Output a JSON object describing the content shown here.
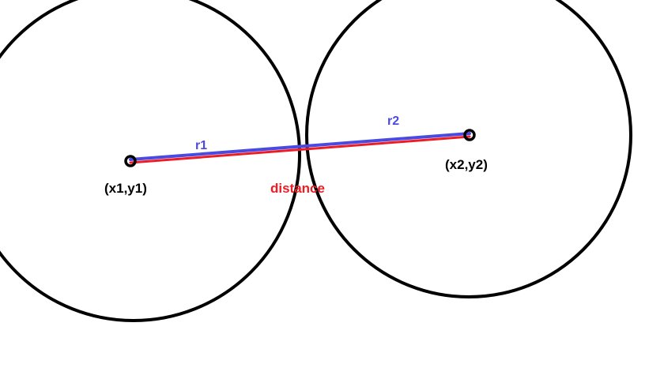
{
  "diagram": {
    "point1_label": "(x1,y1)",
    "point2_label": "(x2,y2)",
    "radius1_label": "r1",
    "radius2_label": "r2",
    "distance_label": "distance"
  },
  "colors": {
    "background": "#ffffff",
    "circle_stroke": "#000000",
    "radius_line": "#4a4ae0",
    "distance_line": "#ee1c24",
    "point_label": "#000000",
    "radius_label": "#4a4ae0",
    "distance_label": "#ee1c24"
  }
}
